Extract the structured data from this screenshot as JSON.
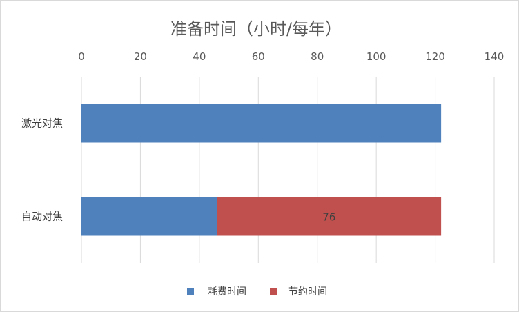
{
  "chart_data": {
    "type": "bar",
    "orientation": "horizontal",
    "stacked": true,
    "title": "准备时间（小时/每年）",
    "categories": [
      "激光对焦",
      "自动对焦"
    ],
    "series": [
      {
        "name": "耗费时间",
        "values": [
          122,
          46
        ],
        "color": "#4f81bd"
      },
      {
        "name": "节约时间",
        "values": [
          0,
          76
        ],
        "color": "#c0504d"
      }
    ],
    "data_labels": [
      {
        "series": 1,
        "category": 1,
        "text": "76"
      }
    ],
    "xlim": [
      0,
      140
    ],
    "x_ticks": [
      "0",
      "20",
      "40",
      "60",
      "80",
      "100",
      "120",
      "140"
    ],
    "axis_position": "top",
    "grid": true,
    "legend_position": "bottom"
  }
}
